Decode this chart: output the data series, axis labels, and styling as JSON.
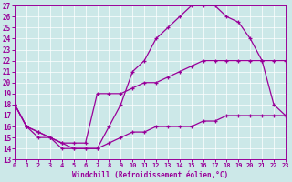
{
  "xlabel": "Windchill (Refroidissement éolien,°C)",
  "bg_color": "#cce8e8",
  "line_color": "#990099",
  "xlim": [
    0,
    23
  ],
  "ylim": [
    13,
    27
  ],
  "xticks": [
    0,
    1,
    2,
    3,
    4,
    5,
    6,
    7,
    8,
    9,
    10,
    11,
    12,
    13,
    14,
    15,
    16,
    17,
    18,
    19,
    20,
    21,
    22,
    23
  ],
  "yticks": [
    13,
    14,
    15,
    16,
    17,
    18,
    19,
    20,
    21,
    22,
    23,
    24,
    25,
    26,
    27
  ],
  "curve1_x": [
    0,
    1,
    2,
    3,
    4,
    5,
    6,
    7,
    8,
    9,
    10,
    11,
    12,
    13,
    14,
    15,
    16,
    17,
    18,
    19,
    20,
    21,
    22,
    23
  ],
  "curve1_y": [
    18,
    16,
    15,
    15,
    14,
    14,
    14,
    14,
    16,
    18,
    21,
    22,
    24,
    25,
    26,
    27,
    27,
    27,
    26,
    25.5,
    24,
    22,
    18,
    17
  ],
  "curve2_x": [
    0,
    1,
    2,
    3,
    4,
    5,
    6,
    7,
    8,
    9,
    10,
    11,
    12,
    13,
    14,
    15,
    16,
    17,
    18,
    19,
    20,
    21,
    22,
    23
  ],
  "curve2_y": [
    18,
    16,
    15.5,
    15,
    14.5,
    14.5,
    14.5,
    19,
    19,
    19,
    19.5,
    20,
    20,
    20.5,
    21,
    21.5,
    22,
    22,
    22,
    22,
    22,
    22,
    22,
    22
  ],
  "curve3_x": [
    0,
    1,
    2,
    3,
    4,
    5,
    6,
    7,
    8,
    9,
    10,
    11,
    12,
    13,
    14,
    15,
    16,
    17,
    18,
    19,
    20,
    21,
    22,
    23
  ],
  "curve3_y": [
    18,
    16,
    15.5,
    15,
    14.5,
    14,
    14,
    14,
    14.5,
    15,
    15.5,
    15.5,
    16,
    16,
    16,
    16,
    16.5,
    16.5,
    17,
    17,
    17,
    17,
    17,
    17
  ]
}
